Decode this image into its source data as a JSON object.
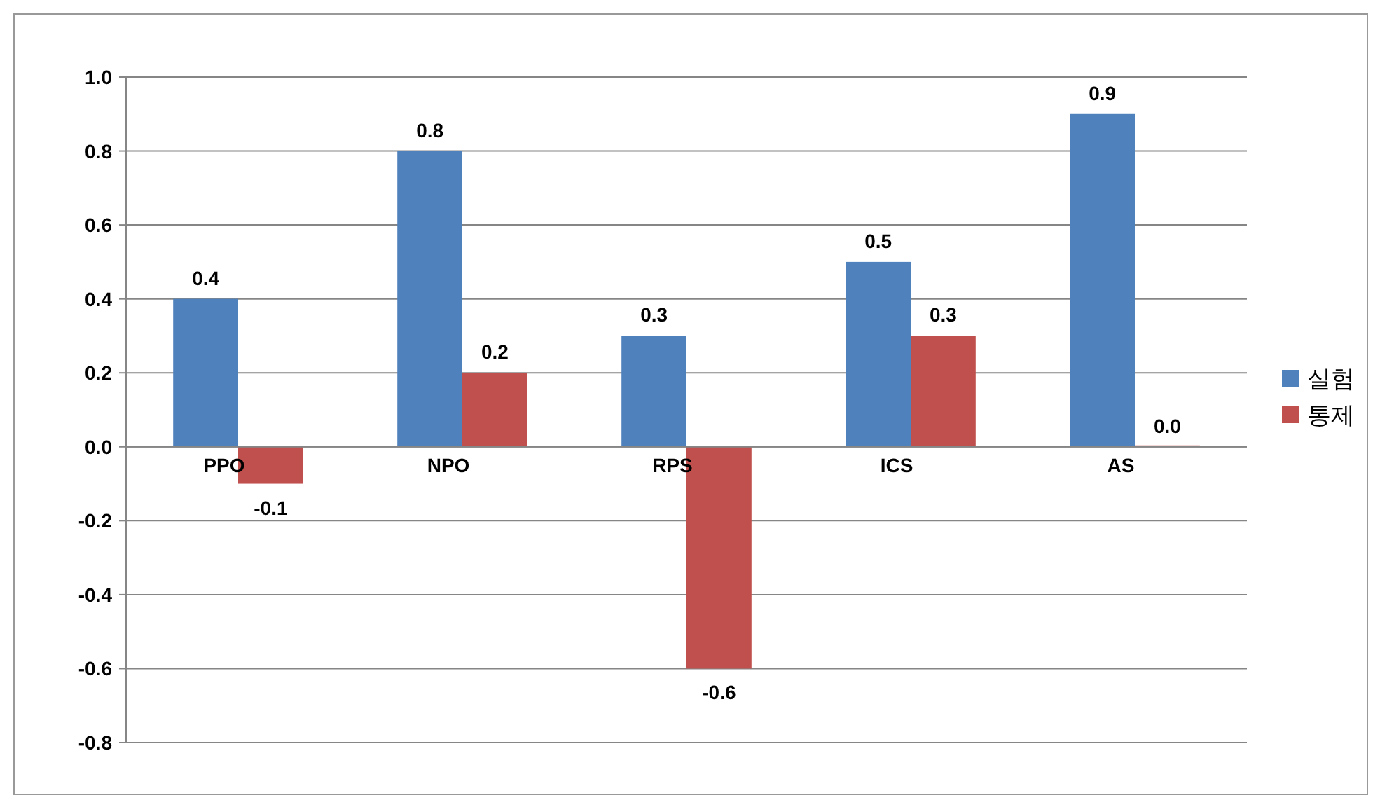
{
  "chart_data": {
    "type": "bar",
    "categories": [
      "PPO",
      "NPO",
      "RPS",
      "ICS",
      "AS"
    ],
    "series": [
      {
        "name": "실험",
        "color": "#4f81bd",
        "values": [
          0.4,
          0.8,
          0.3,
          0.5,
          0.9
        ],
        "value_labels": [
          "0.4",
          "0.8",
          "0.3",
          "0.5",
          "0.9"
        ]
      },
      {
        "name": "통제",
        "color": "#c0504d",
        "values": [
          -0.1,
          0.2,
          -0.6,
          0.3,
          0.0
        ],
        "value_labels": [
          "-0.1",
          "0.2",
          "-0.6",
          "0.3",
          "0.0"
        ]
      }
    ],
    "ylim": [
      -0.8,
      1.0
    ],
    "yticks": [
      {
        "value": 1.0,
        "label": "1.0"
      },
      {
        "value": 0.8,
        "label": "0.8"
      },
      {
        "value": 0.6,
        "label": "0.6"
      },
      {
        "value": 0.4,
        "label": "0.4"
      },
      {
        "value": 0.2,
        "label": "0.2"
      },
      {
        "value": 0,
        "label": "0.0"
      },
      {
        "value": -0.2,
        "label": "-0.2"
      },
      {
        "value": -0.4,
        "label": "-0.4"
      },
      {
        "value": -0.6,
        "label": "-0.6"
      },
      {
        "value": -0.8,
        "label": "-0.8"
      }
    ],
    "grid": "y",
    "legend": "right"
  }
}
